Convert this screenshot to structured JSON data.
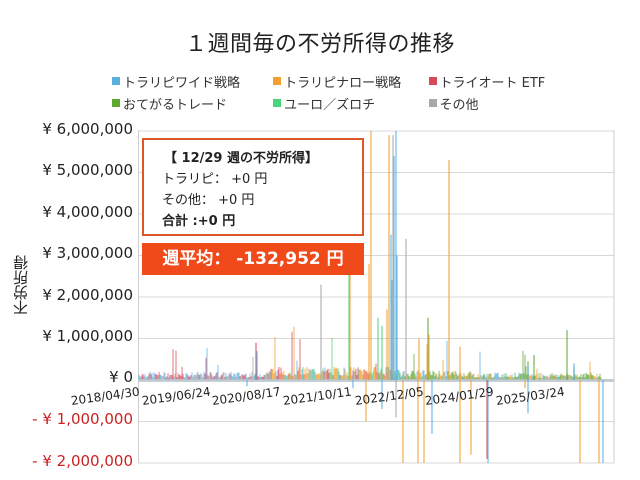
{
  "title": "１週間毎の不労所得の推移",
  "legend": {
    "row1": [
      {
        "label": "トラリピワイド戦略",
        "color": "#5aaee0"
      },
      {
        "label": "トラリピナロー戦略",
        "color": "#f4a030"
      },
      {
        "label": "トライオート ETF",
        "color": "#d8485a"
      }
    ],
    "row2": [
      {
        "label": "おてがるトレード",
        "color": "#5ea832"
      },
      {
        "label": "ユーロ／ズロチ",
        "color": "#4cd47a"
      },
      {
        "label": "その他",
        "color": "#a8a8a8"
      }
    ]
  },
  "y_axis": {
    "label": "不労所得",
    "ticks": [
      "¥ 6,000,000",
      "¥ 5,000,000",
      "¥ 4,000,000",
      "¥ 3,000,000",
      "¥ 2,000,000",
      "¥ 1,000,000",
      "¥ 0",
      "- ¥ 1,000,000",
      "- ¥ 2,000,000"
    ]
  },
  "x_axis": {
    "ticks": [
      "2018/04/30",
      "2019/06/24",
      "2020/08/17",
      "2021/10/11",
      "2022/12/05",
      "2024/01/29",
      "2025/03/24"
    ]
  },
  "info_box": {
    "heading": "【 12/29 週の不労所得】",
    "toraripi": "トラリピ：  +0 円",
    "other": "その他：  +0 円",
    "total": "合計 :+0 円"
  },
  "weekly_average": "週平均：  -132,952 円",
  "colors": {
    "accent_border": "#e0542a",
    "accent_fill": "#f04a1a",
    "negative_tick": "#cc2222",
    "grid": "#d8d8d8"
  },
  "chart_data": {
    "type": "bar",
    "title": "１週間毎の不労所得の推移",
    "xlabel": "",
    "ylabel": "不労所得",
    "ylim": [
      -2000000,
      6000000
    ],
    "grid": true,
    "legend_position": "top",
    "categories": [
      "2018/04/30",
      "2019/06/24",
      "2020/08/17",
      "2021/10/11",
      "2022/12/05",
      "2024/01/29",
      "2025/03/24"
    ],
    "series": [
      {
        "name": "トラリピワイド戦略",
        "color": "#5aaee0",
        "spikes": [
          {
            "x": "2019-10",
            "y": 250000
          },
          {
            "x": "2022-10",
            "y": 6000000
          },
          {
            "x": "2022-10b",
            "y": 5400000
          },
          {
            "x": "2022-11",
            "y": 3000000
          },
          {
            "x": "2024-03",
            "y": 250000
          },
          {
            "x": "2025-06",
            "y": -2000000
          }
        ]
      },
      {
        "name": "トラリピナロー戦略",
        "color": "#f4a030",
        "spikes": [
          {
            "x": "2022-03",
            "y": 800000
          },
          {
            "x": "2022-09",
            "y": 6000000
          },
          {
            "x": "2022-09b",
            "y": 2800000
          },
          {
            "x": "2022-10",
            "y": 5900000
          },
          {
            "x": "2023-03",
            "y": 5300000
          },
          {
            "x": "2023-05",
            "y": 700000
          },
          {
            "x": "2023-01",
            "y": -2000000
          },
          {
            "x": "2023-08",
            "y": -2000000
          },
          {
            "x": "2025-05",
            "y": -2000000
          }
        ]
      },
      {
        "name": "トライオート ETF",
        "color": "#d8485a",
        "spikes": [
          {
            "x": "2019-10",
            "y": 800000
          },
          {
            "x": "2024-01",
            "y": -1900000
          }
        ]
      },
      {
        "name": "おてがるトレード",
        "color": "#5ea832",
        "spikes": [
          {
            "x": "2023-03",
            "y": 500000
          },
          {
            "x": "2025-04",
            "y": 1200000
          }
        ]
      },
      {
        "name": "ユーロ／ズロチ",
        "color": "#4cd47a",
        "spikes": [
          {
            "x": "2022-05",
            "y": 1300000
          },
          {
            "x": "2022-09",
            "y": 700000
          }
        ]
      },
      {
        "name": "その他",
        "color": "#a8a8a8",
        "spikes": [
          {
            "x": "2021-09",
            "y": 2300000
          },
          {
            "x": "2022-11",
            "y": 3400000
          }
        ]
      }
    ],
    "annotations": [
      "【 12/29 週の不労所得】 トラリピ： +0 円 / その他： +0 円 / 合計 :+0 円",
      "週平均： -132,952 円"
    ]
  }
}
